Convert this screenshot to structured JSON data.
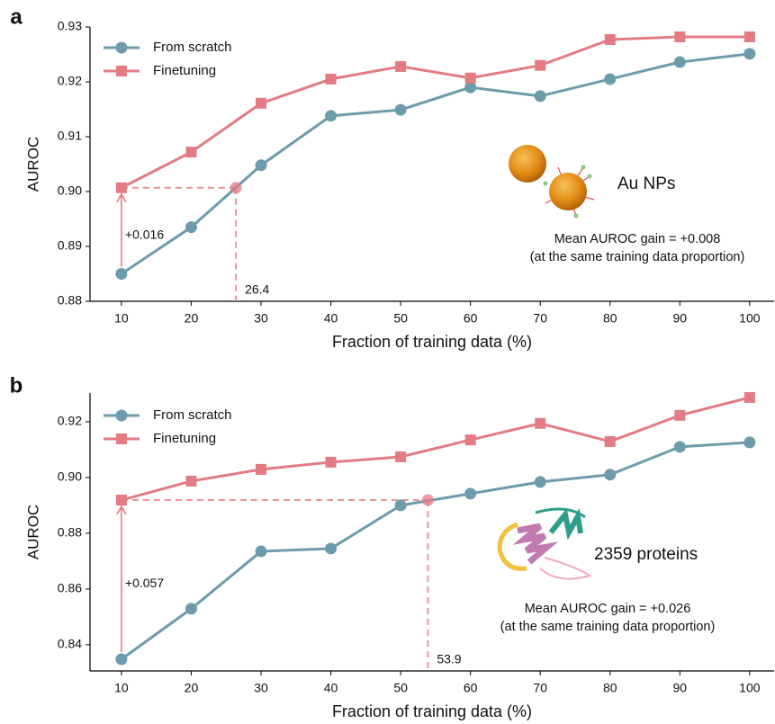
{
  "chart_data": [
    {
      "type": "line",
      "panel_label": "a",
      "x_label": "Fraction of training data (%)",
      "y_label": "AUROC",
      "x": [
        10,
        20,
        30,
        40,
        50,
        60,
        70,
        80,
        90,
        100
      ],
      "series": [
        {
          "name": "From scratch",
          "color": "#6c9bab",
          "marker": "circle",
          "values": [
            0.885,
            0.8935,
            0.9048,
            0.9138,
            0.9149,
            0.919,
            0.9174,
            0.9205,
            0.9236,
            0.9251
          ]
        },
        {
          "name": "Finetuning",
          "color": "#e37b83",
          "marker": "square",
          "values": [
            0.9007,
            0.9072,
            0.9161,
            0.9205,
            0.9228,
            0.9207,
            0.923,
            0.9277,
            0.9282,
            0.9282
          ]
        }
      ],
      "xlim": [
        5.5,
        103.5
      ],
      "ylim": [
        0.88,
        0.93
      ],
      "xticks": [
        10,
        20,
        30,
        40,
        50,
        60,
        70,
        80,
        90,
        100
      ],
      "yticks": [
        0.88,
        0.89,
        {
          "value": 0.9,
          "label": "0.90"
        },
        0.91,
        0.92,
        0.93
      ],
      "gain_label": "+0.016",
      "crossover_x": 26.4,
      "mean_gain": "Mean AUROC gain = +0.008",
      "note": "(at the same training data proportion)",
      "inset_label": "Au NPs"
    },
    {
      "type": "line",
      "panel_label": "b",
      "x_label": "Fraction of training data (%)",
      "y_label": "AUROC",
      "x": [
        10,
        20,
        30,
        40,
        50,
        60,
        70,
        80,
        90,
        100
      ],
      "series": [
        {
          "name": "From scratch",
          "color": "#6c9bab",
          "marker": "circle",
          "values": [
            0.8348,
            0.8529,
            0.8735,
            0.8745,
            0.89,
            0.8942,
            0.8984,
            0.901,
            0.911,
            0.9126
          ]
        },
        {
          "name": "Finetuning",
          "color": "#e37b83",
          "marker": "square",
          "values": [
            0.8919,
            0.8987,
            0.9029,
            0.9055,
            0.9074,
            0.9135,
            0.9194,
            0.9129,
            0.9223,
            0.9287
          ]
        }
      ],
      "xlim": [
        5.5,
        103.5
      ],
      "ylim": [
        0.8306,
        0.9303
      ],
      "xticks": [
        10,
        20,
        30,
        40,
        50,
        60,
        70,
        80,
        90,
        100
      ],
      "yticks": [
        0.84,
        0.86,
        0.88,
        {
          "value": 0.9,
          "label": "0.90"
        },
        0.92
      ],
      "gain_label": "+0.057",
      "crossover_x": 53.9,
      "mean_gain": "Mean AUROC gain = +0.026",
      "note": "(at the same training data proportion)",
      "inset_label": "2359 proteins"
    }
  ]
}
